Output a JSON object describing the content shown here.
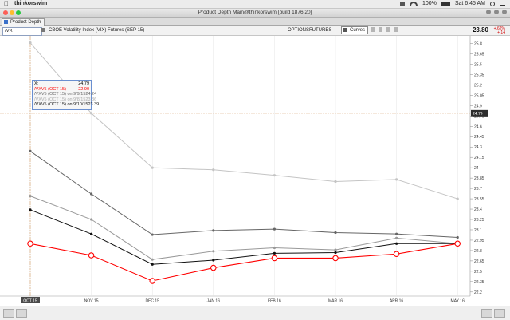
{
  "menubar": {
    "app_name": "thinkorswim",
    "battery": "100%",
    "clock": "Sat 6:45 AM"
  },
  "window": {
    "title": "Product Depth Main@thinkorswim [build 1876.20]"
  },
  "tab": {
    "label": "Product Depth"
  },
  "toolbar": {
    "symbol": "/VX",
    "description": "CBOE Volatility Index (VIX) Futures (SEP 15)",
    "options_label": "OPTIONS",
    "futures_label": "FUTURES",
    "curves_label": "Curves",
    "last_price": "23.80",
    "change_pct": "+.62%",
    "change_abs": "+.14"
  },
  "tooltip": {
    "rows": [
      {
        "label": "X:",
        "value": "24.79",
        "color": "#333333"
      },
      {
        "label": "/VXV5 (OCT 15)",
        "value": "22.90",
        "color": "#ff0000"
      },
      {
        "label": "/VXV5 (OCT 15) on 9/9/15",
        "value": "24.24",
        "color": "#666666"
      },
      {
        "label": "/VXV5 (OCT 15) on 9/8/15",
        "value": "23.86",
        "color": "#aaaaaa"
      },
      {
        "label": "/VXV5 (OCT 15) on 9/10/15",
        "value": "23.39",
        "color": "#111111"
      }
    ]
  },
  "chart_data": {
    "type": "line",
    "categories": [
      "OCT 15",
      "NOV 15",
      "DEC 15",
      "JAN 16",
      "FEB 16",
      "MAR 16",
      "APR 16",
      "MAY 16"
    ],
    "selected_category": "OCT 15",
    "crosshair_value": 24.79,
    "crosshair_label": "24.79",
    "ylim": [
      22.14,
      25.91
    ],
    "y_ticks": [
      "25.8",
      "25.65",
      "25.5",
      "25.35",
      "25.2",
      "25.05",
      "24.9",
      "24.75",
      "24.6",
      "24.45",
      "24.3",
      "24.15",
      "24",
      "23.85",
      "23.7",
      "23.55",
      "23.4",
      "23.25",
      "23.1",
      "22.95",
      "22.8",
      "22.65",
      "22.5",
      "22.35",
      "22.2"
    ],
    "series": [
      {
        "name": "/VXV5 (OCT 15)",
        "color": "#ff0000",
        "marker": "circle",
        "values": [
          22.9,
          22.73,
          22.36,
          22.55,
          22.69,
          22.69,
          22.75,
          22.9
        ]
      },
      {
        "name": "/VXV5 (OCT 15) on 9/9/15",
        "color": "#666666",
        "values": [
          24.24,
          23.62,
          23.03,
          23.09,
          23.11,
          23.06,
          23.04,
          22.99
        ]
      },
      {
        "name": "/VXV5 (OCT 15) on 9/10/15",
        "color": "#111111",
        "values": [
          23.39,
          23.04,
          22.6,
          22.66,
          22.76,
          22.77,
          22.9,
          22.9
        ]
      },
      {
        "values": [
          23.59,
          23.25,
          22.67,
          22.79,
          22.84,
          22.81,
          22.98,
          22.9
        ],
        "color": "#999999"
      },
      {
        "values": [
          25.81,
          24.79,
          24.0,
          23.97,
          23.89,
          23.8,
          23.83,
          23.55
        ],
        "color": "#c4c4c4"
      }
    ]
  }
}
